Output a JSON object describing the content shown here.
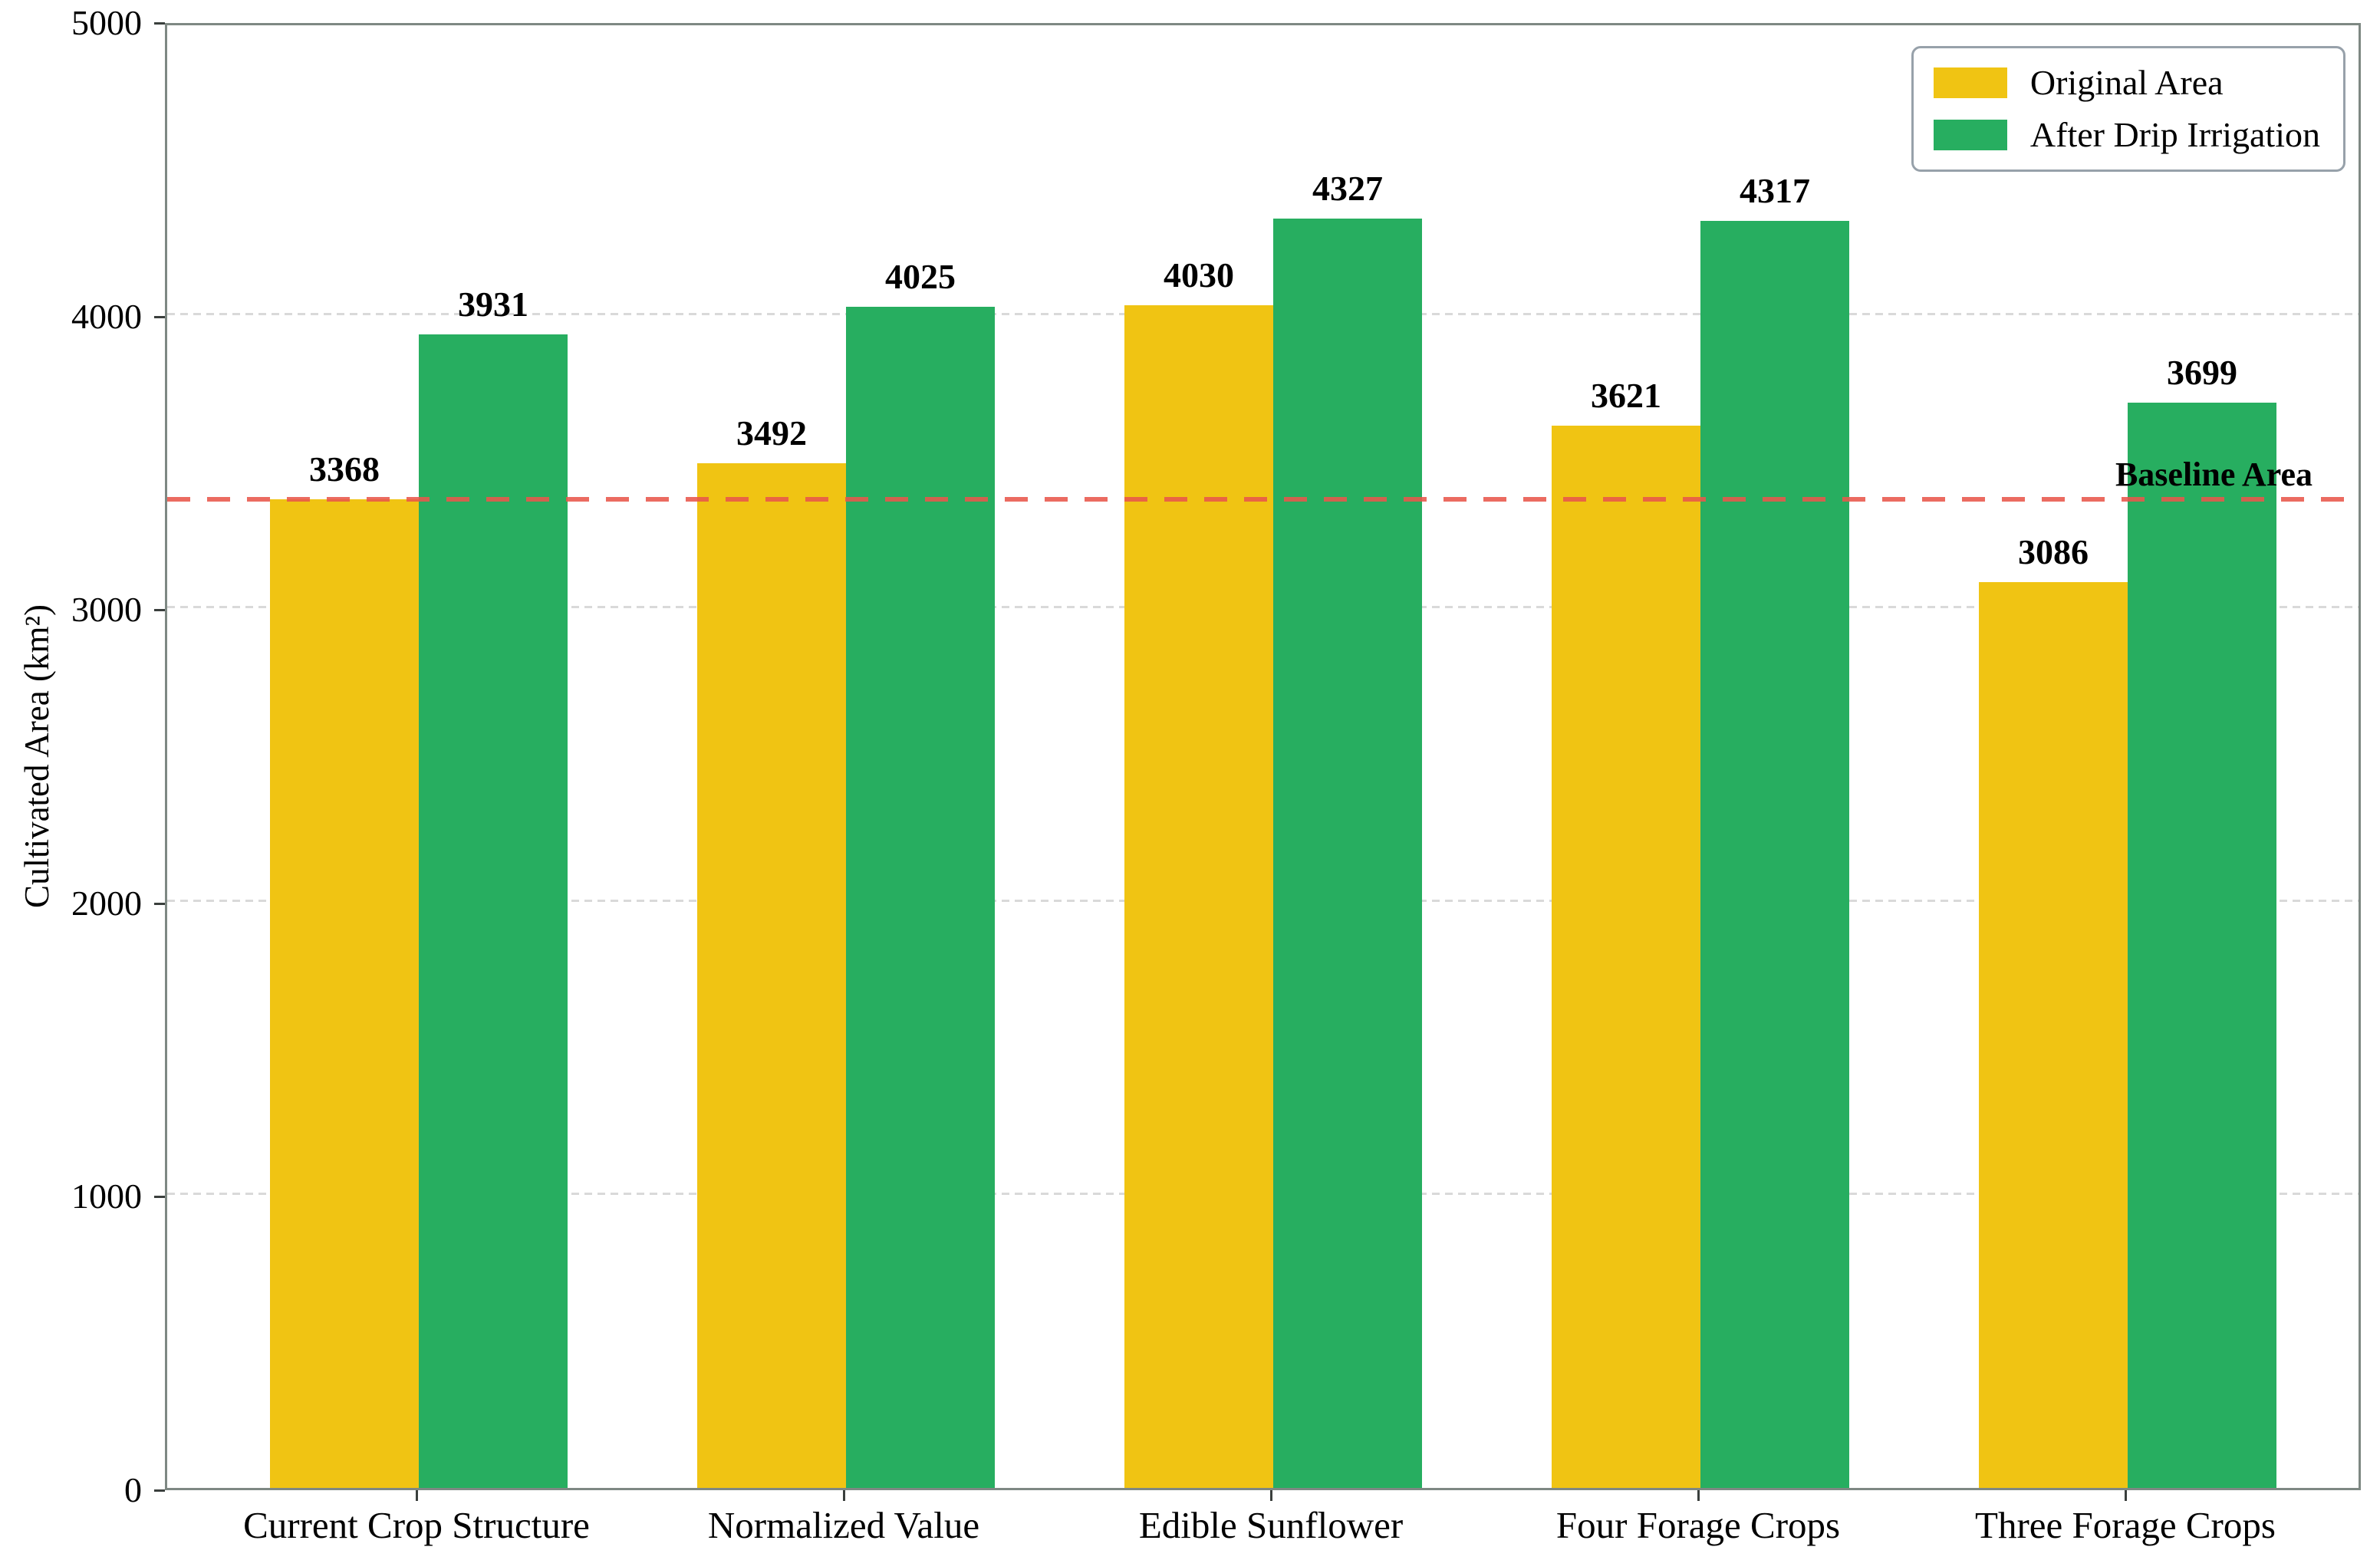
{
  "chart_data": {
    "type": "bar",
    "title": "",
    "xlabel": "",
    "ylabel": "Cultivated Area (km²)",
    "ylim": [
      0,
      5000
    ],
    "yticks": [
      0,
      1000,
      2000,
      3000,
      4000,
      5000
    ],
    "grid": true,
    "legend_position": "top-right",
    "categories": [
      "Current Crop Structure",
      "Normalized Value",
      "Edible Sunflower",
      "Four Forage Crops",
      "Three Forage Crops"
    ],
    "series": [
      {
        "name": "Original Area",
        "color": "#F0C413",
        "values": [
          3368,
          3492,
          4030,
          3621,
          3086
        ]
      },
      {
        "name": "After Drip Irrigation",
        "color": "#27AE60",
        "values": [
          3931,
          4025,
          4327,
          4317,
          3699
        ]
      }
    ],
    "baseline": {
      "label": "Baseline Area",
      "value": 3368,
      "color": "#E8574B"
    },
    "colors": {
      "axis": "#7e8883",
      "grid": "#d9d9d9",
      "tick": "#3a3f3d",
      "text": "#000000"
    }
  }
}
